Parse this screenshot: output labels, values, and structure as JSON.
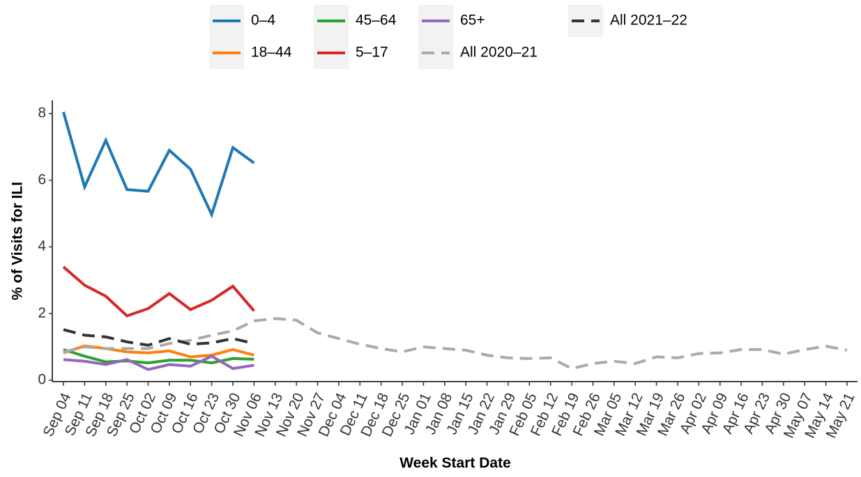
{
  "chart_data": {
    "type": "line",
    "x_label": "Week Start Date",
    "y_label": "% of Visits for ILI",
    "categories": [
      "Sep 04",
      "Sep 11",
      "Sep 18",
      "Sep 25",
      "Oct 02",
      "Oct 09",
      "Oct 16",
      "Oct 23",
      "Oct 30",
      "Nov 06",
      "Nov 13",
      "Nov 20",
      "Nov 27",
      "Dec 04",
      "Dec 11",
      "Dec 18",
      "Dec 25",
      "Jan 01",
      "Jan 08",
      "Jan 15",
      "Jan 22",
      "Jan 29",
      "Feb 05",
      "Feb 12",
      "Feb 19",
      "Feb 26",
      "Mar 05",
      "Mar 12",
      "Mar 19",
      "Mar 26",
      "Apr 02",
      "Apr 09",
      "Apr 16",
      "Apr 23",
      "Apr 30",
      "May 07",
      "May 14",
      "May 21"
    ],
    "series": [
      {
        "name": "0–4",
        "color": "#1f77b4",
        "dashed": false,
        "values": [
          8.05,
          5.8,
          7.2,
          5.72,
          5.67,
          6.9,
          6.33,
          4.97,
          6.98,
          6.52,
          null,
          null,
          null,
          null,
          null,
          null,
          null,
          null,
          null,
          null,
          null,
          null,
          null,
          null,
          null,
          null,
          null,
          null,
          null,
          null,
          null,
          null,
          null,
          null,
          null,
          null,
          null,
          null
        ]
      },
      {
        "name": "18–44",
        "color": "#ff7f0e",
        "dashed": false,
        "values": [
          0.82,
          1.03,
          0.95,
          0.85,
          0.82,
          0.88,
          0.7,
          0.75,
          0.92,
          0.75,
          null,
          null,
          null,
          null,
          null,
          null,
          null,
          null,
          null,
          null,
          null,
          null,
          null,
          null,
          null,
          null,
          null,
          null,
          null,
          null,
          null,
          null,
          null,
          null,
          null,
          null,
          null,
          null
        ]
      },
      {
        "name": "45–64",
        "color": "#2ca02c",
        "dashed": false,
        "values": [
          0.92,
          0.72,
          0.55,
          0.58,
          0.52,
          0.6,
          0.6,
          0.52,
          0.65,
          0.63,
          null,
          null,
          null,
          null,
          null,
          null,
          null,
          null,
          null,
          null,
          null,
          null,
          null,
          null,
          null,
          null,
          null,
          null,
          null,
          null,
          null,
          null,
          null,
          null,
          null,
          null,
          null,
          null
        ]
      },
      {
        "name": "5–17",
        "color": "#d62728",
        "dashed": false,
        "values": [
          3.4,
          2.85,
          2.52,
          1.93,
          2.15,
          2.6,
          2.12,
          2.4,
          2.82,
          2.08,
          null,
          null,
          null,
          null,
          null,
          null,
          null,
          null,
          null,
          null,
          null,
          null,
          null,
          null,
          null,
          null,
          null,
          null,
          null,
          null,
          null,
          null,
          null,
          null,
          null,
          null,
          null,
          null
        ]
      },
      {
        "name": "65+",
        "color": "#9467bd",
        "dashed": false,
        "values": [
          0.62,
          0.57,
          0.47,
          0.62,
          0.32,
          0.47,
          0.42,
          0.72,
          0.35,
          0.45,
          null,
          null,
          null,
          null,
          null,
          null,
          null,
          null,
          null,
          null,
          null,
          null,
          null,
          null,
          null,
          null,
          null,
          null,
          null,
          null,
          null,
          null,
          null,
          null,
          null,
          null,
          null,
          null
        ]
      },
      {
        "name": "All 2020–21",
        "color": "#aaaaaa",
        "dashed": true,
        "values": [
          0.85,
          1.0,
          0.95,
          0.95,
          0.95,
          1.1,
          1.2,
          1.35,
          1.48,
          1.78,
          1.85,
          1.8,
          1.42,
          1.25,
          1.08,
          0.95,
          0.85,
          1.0,
          0.95,
          0.9,
          0.75,
          0.67,
          0.65,
          0.67,
          0.35,
          0.5,
          0.57,
          0.5,
          0.7,
          0.67,
          0.8,
          0.82,
          0.92,
          0.92,
          0.78,
          0.92,
          1.02,
          0.9
        ]
      },
      {
        "name": "All 2021–22",
        "color": "#333333",
        "dashed": true,
        "values": [
          1.52,
          1.35,
          1.3,
          1.15,
          1.05,
          1.25,
          1.08,
          1.12,
          1.25,
          1.1,
          null,
          null,
          null,
          null,
          null,
          null,
          null,
          null,
          null,
          null,
          null,
          null,
          null,
          null,
          null,
          null,
          null,
          null,
          null,
          null,
          null,
          null,
          null,
          null,
          null,
          null,
          null,
          null
        ]
      }
    ],
    "ylim": [
      0,
      8.4
    ],
    "yticks": [
      0,
      2,
      4,
      6,
      8
    ],
    "grid": false,
    "legend": "top"
  }
}
